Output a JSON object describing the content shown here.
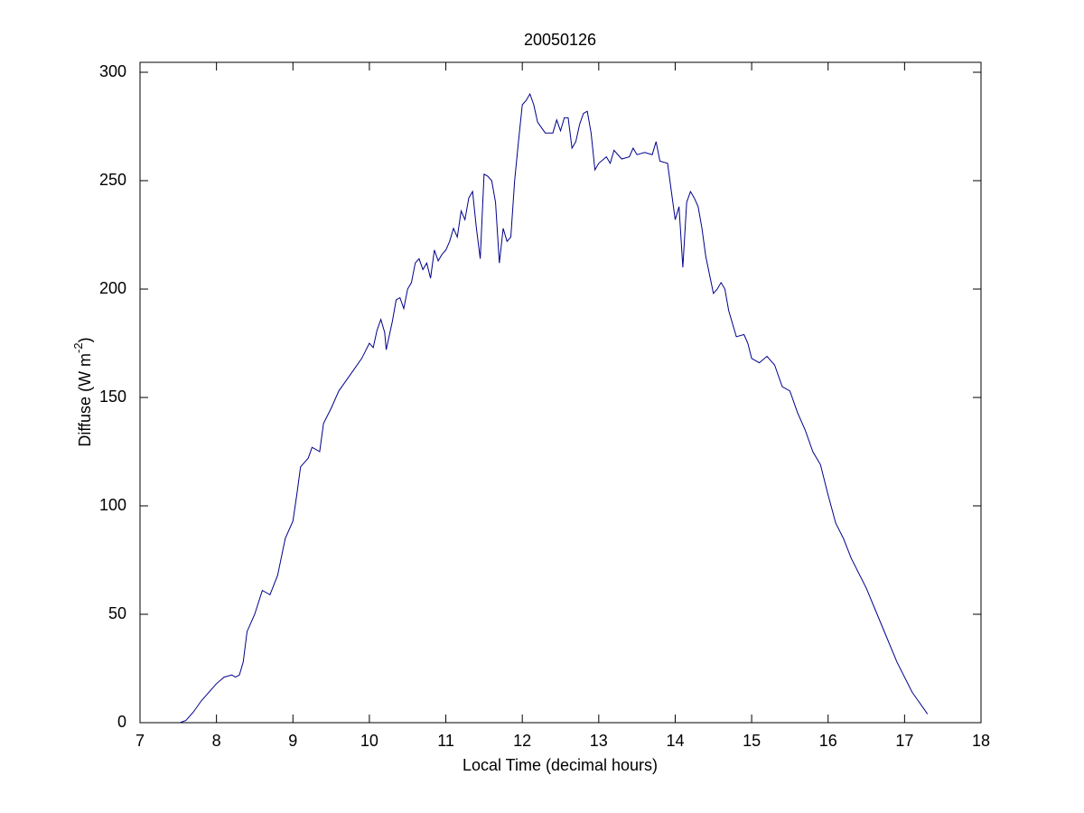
{
  "chart_data": {
    "type": "line",
    "title": "20050126",
    "xlabel": "Local Time (decimal hours)",
    "ylabel_parts": [
      "Diffuse (W m",
      "-2",
      ")"
    ],
    "xlim": [
      7,
      18
    ],
    "xticks": [
      7,
      8,
      9,
      10,
      11,
      12,
      13,
      14,
      15,
      16,
      17,
      18
    ],
    "ylim": [
      0,
      300
    ],
    "yticks": [
      0,
      50,
      100,
      150,
      200,
      250,
      300
    ],
    "grid": false,
    "x": [
      7.52,
      7.6,
      7.7,
      7.8,
      7.9,
      8.0,
      8.1,
      8.2,
      8.25,
      8.3,
      8.35,
      8.4,
      8.5,
      8.6,
      8.65,
      8.7,
      8.8,
      8.9,
      9.0,
      9.05,
      9.1,
      9.2,
      9.25,
      9.3,
      9.35,
      9.4,
      9.5,
      9.6,
      9.7,
      9.8,
      9.9,
      10.0,
      10.05,
      10.1,
      10.15,
      10.2,
      10.22,
      10.3,
      10.35,
      10.4,
      10.45,
      10.5,
      10.55,
      10.6,
      10.65,
      10.7,
      10.75,
      10.8,
      10.85,
      10.9,
      10.95,
      11.0,
      11.05,
      11.1,
      11.15,
      11.2,
      11.25,
      11.3,
      11.35,
      11.4,
      11.45,
      11.5,
      11.55,
      11.6,
      11.65,
      11.7,
      11.75,
      11.8,
      11.85,
      11.9,
      11.95,
      12.0,
      12.05,
      12.1,
      12.15,
      12.2,
      12.3,
      12.4,
      12.45,
      12.5,
      12.55,
      12.6,
      12.65,
      12.7,
      12.75,
      12.8,
      12.85,
      12.9,
      12.95,
      13.0,
      13.1,
      13.15,
      13.2,
      13.3,
      13.4,
      13.45,
      13.5,
      13.6,
      13.7,
      13.75,
      13.8,
      13.9,
      13.95,
      14.0,
      14.05,
      14.1,
      14.15,
      14.2,
      14.25,
      14.3,
      14.35,
      14.4,
      14.5,
      14.55,
      14.6,
      14.65,
      14.7,
      14.8,
      14.9,
      14.95,
      15.0,
      15.1,
      15.2,
      15.3,
      15.4,
      15.5,
      15.6,
      15.7,
      15.8,
      15.9,
      16.0,
      16.1,
      16.2,
      16.3,
      16.5,
      16.7,
      16.9,
      17.1,
      17.3
    ],
    "series": [
      {
        "color": "#00008b",
        "values": [
          0,
          1,
          5,
          10,
          14,
          18,
          21,
          22,
          21,
          22,
          28,
          42,
          50,
          61,
          60,
          59,
          68,
          85,
          93,
          105,
          118,
          122,
          127,
          126,
          125,
          138,
          145,
          153,
          158,
          163,
          168,
          175,
          173,
          181,
          186,
          180,
          172,
          185,
          195,
          196,
          191,
          200,
          203,
          212,
          214,
          209,
          212,
          205,
          218,
          213,
          216,
          218,
          222,
          228,
          224,
          236,
          232,
          242,
          245,
          228,
          214,
          253,
          252,
          250,
          240,
          212,
          228,
          222,
          224,
          250,
          268,
          285,
          287,
          290,
          285,
          277,
          272,
          272,
          278,
          273,
          279,
          279,
          265,
          268,
          276,
          281,
          282,
          272,
          255,
          258,
          261,
          258,
          264,
          260,
          261,
          265,
          262,
          263,
          262,
          268,
          259,
          258,
          245,
          232,
          238,
          210,
          240,
          245,
          242,
          238,
          228,
          215,
          198,
          200,
          203,
          200,
          190,
          178,
          179,
          175,
          168,
          166,
          169,
          165,
          155,
          153,
          143,
          135,
          125,
          119,
          105,
          92,
          85,
          76,
          62,
          45,
          28,
          14,
          4
        ]
      }
    ]
  }
}
